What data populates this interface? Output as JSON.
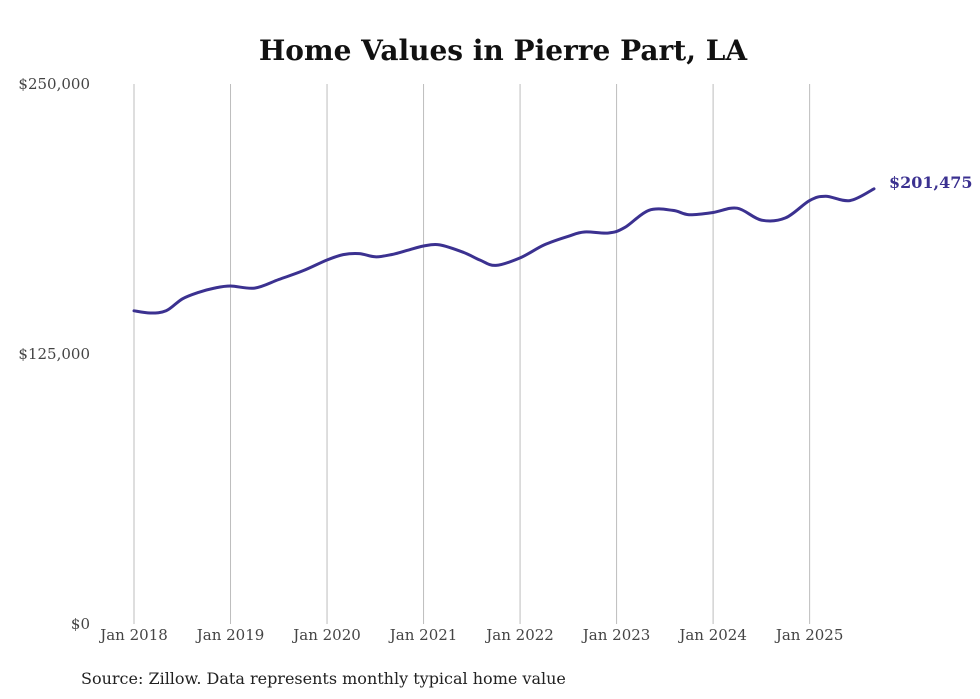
{
  "chart_data": {
    "type": "line",
    "title": "Home Values in Pierre Part, LA",
    "xlabel": "",
    "ylabel": "",
    "ylim": [
      0,
      250000
    ],
    "y_ticks": [
      {
        "value": 0,
        "label": "$0"
      },
      {
        "value": 125000,
        "label": "$125,000"
      },
      {
        "value": 250000,
        "label": "$250,000"
      }
    ],
    "x_ticks": [
      {
        "value": 2018.0,
        "label": "Jan 2018"
      },
      {
        "value": 2019.0,
        "label": "Jan 2019"
      },
      {
        "value": 2020.0,
        "label": "Jan 2020"
      },
      {
        "value": 2021.0,
        "label": "Jan 2021"
      },
      {
        "value": 2022.0,
        "label": "Jan 2022"
      },
      {
        "value": 2023.0,
        "label": "Jan 2023"
      },
      {
        "value": 2024.0,
        "label": "Jan 2024"
      },
      {
        "value": 2025.0,
        "label": "Jan 2025"
      }
    ],
    "xlim": [
      2018.0,
      2025.667
    ],
    "grid": "vertical",
    "series": [
      {
        "name": "Typical home value",
        "color": "#3b3190",
        "x": [
          2018.0,
          2018.167,
          2018.333,
          2018.5,
          2018.667,
          2018.833,
          2019.0,
          2019.25,
          2019.5,
          2019.75,
          2020.0,
          2020.167,
          2020.333,
          2020.5,
          2020.667,
          2020.833,
          2021.0,
          2021.167,
          2021.417,
          2021.583,
          2021.75,
          2022.0,
          2022.25,
          2022.5,
          2022.667,
          2022.917,
          2023.083,
          2023.333,
          2023.583,
          2023.75,
          2024.0,
          2024.25,
          2024.5,
          2024.75,
          2025.0,
          2025.167,
          2025.417,
          2025.667
        ],
        "values": [
          145000,
          144000,
          145000,
          150500,
          153500,
          155500,
          156500,
          155500,
          159500,
          163500,
          168500,
          171000,
          171500,
          170000,
          171000,
          173000,
          175000,
          175500,
          172000,
          168500,
          166000,
          169500,
          175500,
          179500,
          181500,
          181000,
          183500,
          191500,
          191500,
          189500,
          190500,
          192500,
          187000,
          188000,
          196000,
          198000,
          196000,
          201475
        ]
      }
    ],
    "end_label": "$201,475",
    "source": "Source: Zillow. Data represents monthly typical home value"
  }
}
